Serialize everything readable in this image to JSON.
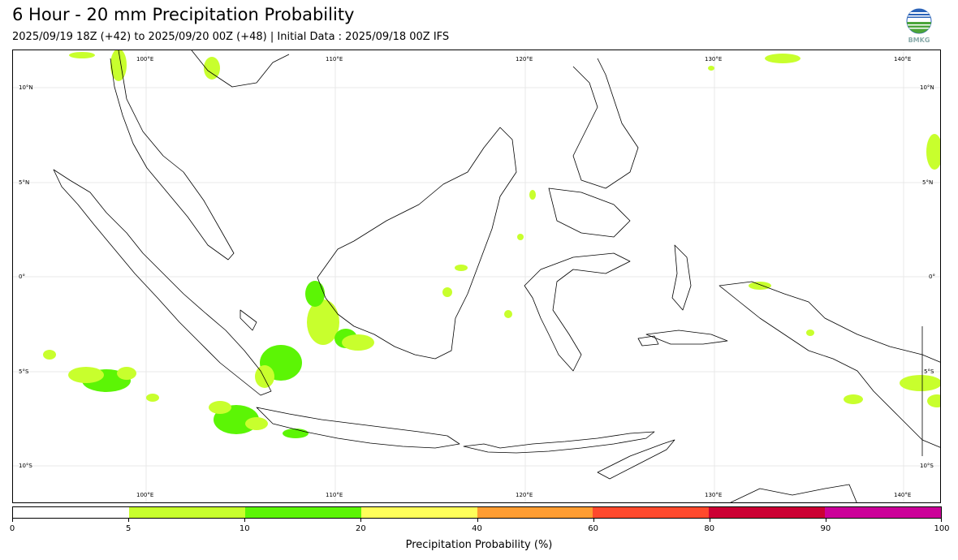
{
  "header": {
    "title": "6 Hour - 20 mm Precipitation Probability",
    "subtitle": "2025/09/19 18Z (+42) to 2025/09/20 00Z (+48) | Initial Data : 2025/09/18 00Z IFS",
    "logo_text": "BMKG"
  },
  "map": {
    "lat_labels": [
      "10°N",
      "5°N",
      "0°",
      "5°S",
      "10°S"
    ],
    "lon_labels": [
      "100°E",
      "110°E",
      "120°E",
      "130°E",
      "140°E"
    ],
    "gridlines": true,
    "colors": {
      "coast": "#000000",
      "grid": "#e8e8e8"
    }
  },
  "colorbar": {
    "title": "Precipitation Probability (%)",
    "tick_labels": [
      "0",
      "5",
      "10",
      "20",
      "40",
      "60",
      "80",
      "90",
      "100"
    ],
    "segments": [
      {
        "range": "0-5",
        "color": "#ffffff"
      },
      {
        "range": "5-10",
        "color": "#c8ff2d"
      },
      {
        "range": "10-20",
        "color": "#5cf505"
      },
      {
        "range": "20-40",
        "color": "#ffff5a"
      },
      {
        "range": "40-60",
        "color": "#ff9d32"
      },
      {
        "range": "60-80",
        "color": "#ff4a2d"
      },
      {
        "range": "80-90",
        "color": "#cc0033"
      },
      {
        "range": "90-100",
        "color": "#cc0099"
      }
    ]
  }
}
